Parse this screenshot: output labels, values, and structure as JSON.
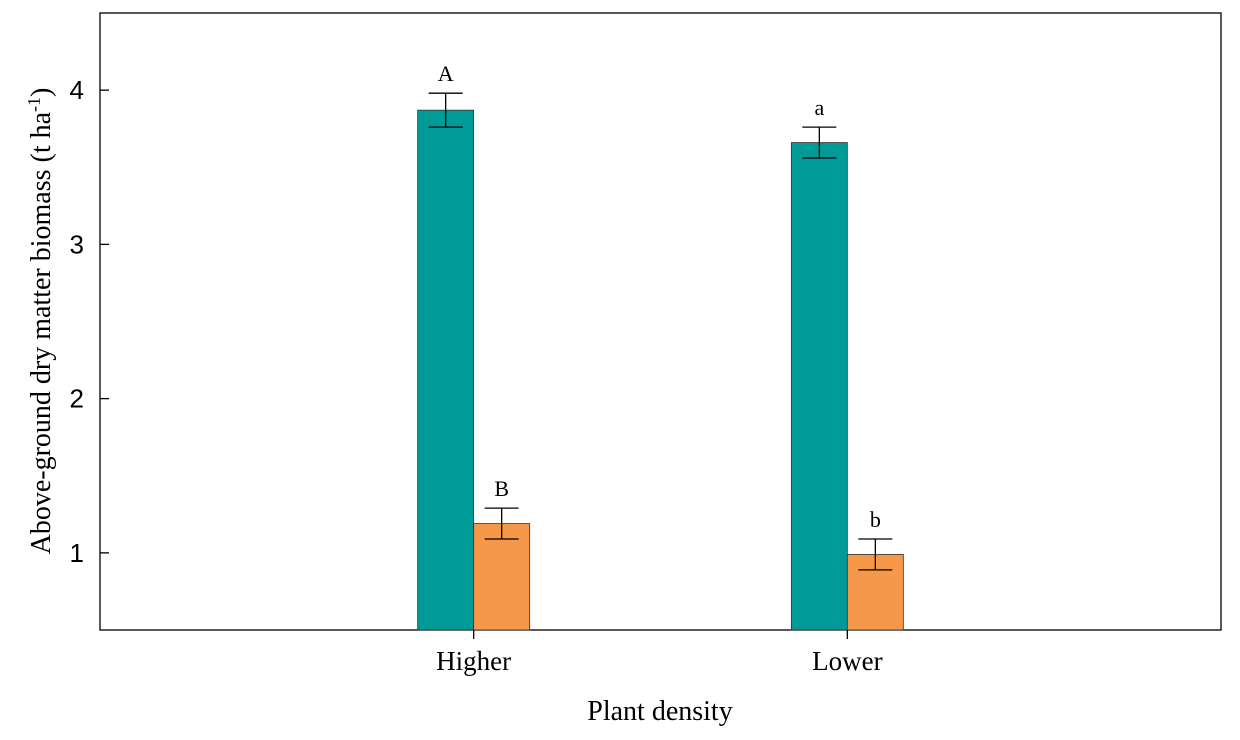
{
  "chart_data": {
    "type": "bar",
    "title": "",
    "xlabel": "Plant density",
    "ylabel_main": "Above-ground dry matter biomass (t ha",
    "ylabel_sup": "-1",
    "ylabel_close": ")",
    "ylim": [
      0.5,
      4.5
    ],
    "yticks": [
      1,
      2,
      3,
      4
    ],
    "grid": false,
    "legend": "none",
    "categories": [
      "Higher",
      "Lower"
    ],
    "series": [
      {
        "color": "#009b96",
        "values": [
          3.87,
          3.66
        ],
        "errors": [
          0.11,
          0.1
        ],
        "letters": [
          "A",
          "a"
        ]
      },
      {
        "color": "#f5984a",
        "values": [
          1.19,
          0.99
        ],
        "errors": [
          0.1,
          0.1
        ],
        "letters": [
          "B",
          "b"
        ]
      }
    ]
  }
}
